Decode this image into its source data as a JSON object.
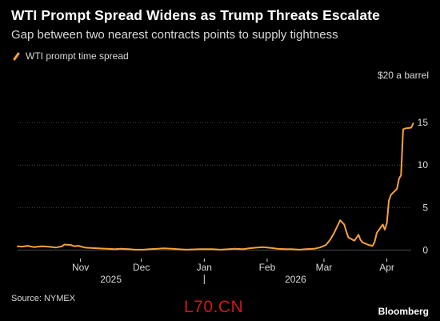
{
  "title": "WTI Prompt Spread Widens as Trump Threats Escalate",
  "subtitle": "Gap between two nearest contracts points to supply tightness",
  "unit_label": "$20 a barrel",
  "source": "Source: NYMEX",
  "watermark": "L70.CN",
  "brand": "Bloomberg",
  "colors": {
    "background": "#000000",
    "line": "#f7a13a",
    "grid": "#4a4a4a",
    "text": "#d9d9d9"
  },
  "chart_data": {
    "type": "line",
    "title": "WTI Prompt Spread Widens as Trump Threats Escalate",
    "subtitle": "Gap between two nearest contracts points to supply tightness",
    "ylabel": "$20 a barrel",
    "ylim": [
      -1,
      20
    ],
    "y_ticks": [
      0,
      5,
      10,
      15
    ],
    "grid": true,
    "legend_position": "top-left",
    "x_range": [
      "2025-10-01",
      "2026-04-13"
    ],
    "x_ticks": [
      {
        "date": "2025-11-01",
        "label": "Nov"
      },
      {
        "date": "2025-12-01",
        "label": "Dec"
      },
      {
        "date": "2026-01-01",
        "label": "Jan"
      },
      {
        "date": "2026-02-01",
        "label": "Feb"
      },
      {
        "date": "2026-03-01",
        "label": "Mar"
      },
      {
        "date": "2026-04-01",
        "label": "Apr"
      }
    ],
    "year_labels": [
      {
        "label": "2025",
        "date": "2025-11-16"
      },
      {
        "label": "2026",
        "date": "2026-02-15"
      }
    ],
    "year_separator": "2026-01-01",
    "series": [
      {
        "name": "WTI prompt time spread",
        "color": "#f7a13a",
        "points": [
          [
            "2025-10-01",
            0.45
          ],
          [
            "2025-10-03",
            0.4
          ],
          [
            "2025-10-06",
            0.5
          ],
          [
            "2025-10-09",
            0.35
          ],
          [
            "2025-10-13",
            0.45
          ],
          [
            "2025-10-16",
            0.4
          ],
          [
            "2025-10-20",
            0.3
          ],
          [
            "2025-10-23",
            0.45
          ],
          [
            "2025-10-24",
            0.65
          ],
          [
            "2025-10-27",
            0.6
          ],
          [
            "2025-10-29",
            0.45
          ],
          [
            "2025-10-31",
            0.5
          ],
          [
            "2025-11-03",
            0.3
          ],
          [
            "2025-11-06",
            0.25
          ],
          [
            "2025-11-10",
            0.2
          ],
          [
            "2025-11-14",
            0.15
          ],
          [
            "2025-11-18",
            0.1
          ],
          [
            "2025-11-21",
            0.15
          ],
          [
            "2025-11-25",
            0.1
          ],
          [
            "2025-11-28",
            0.05
          ],
          [
            "2025-12-02",
            0.05
          ],
          [
            "2025-12-05",
            0.1
          ],
          [
            "2025-12-09",
            0.15
          ],
          [
            "2025-12-12",
            0.2
          ],
          [
            "2025-12-16",
            0.15
          ],
          [
            "2025-12-19",
            0.1
          ],
          [
            "2025-12-23",
            0.05
          ],
          [
            "2025-12-30",
            0.1
          ],
          [
            "2026-01-05",
            0.1
          ],
          [
            "2026-01-09",
            0.05
          ],
          [
            "2026-01-13",
            0.1
          ],
          [
            "2026-01-16",
            0.15
          ],
          [
            "2026-01-20",
            0.1
          ],
          [
            "2026-01-23",
            0.2
          ],
          [
            "2026-01-27",
            0.3
          ],
          [
            "2026-01-30",
            0.35
          ],
          [
            "2026-02-03",
            0.25
          ],
          [
            "2026-02-06",
            0.15
          ],
          [
            "2026-02-10",
            0.1
          ],
          [
            "2026-02-13",
            0.1
          ],
          [
            "2026-02-17",
            0.05
          ],
          [
            "2026-02-20",
            0.1
          ],
          [
            "2026-02-24",
            0.15
          ],
          [
            "2026-02-27",
            0.3
          ],
          [
            "2026-03-02",
            0.6
          ],
          [
            "2026-03-04",
            1.2
          ],
          [
            "2026-03-06",
            2.0
          ],
          [
            "2026-03-09",
            3.5
          ],
          [
            "2026-03-11",
            3.0
          ],
          [
            "2026-03-12",
            2.2
          ],
          [
            "2026-03-13",
            1.5
          ],
          [
            "2026-03-16",
            1.1
          ],
          [
            "2026-03-18",
            1.8
          ],
          [
            "2026-03-19",
            1.2
          ],
          [
            "2026-03-20",
            0.9
          ],
          [
            "2026-03-23",
            0.6
          ],
          [
            "2026-03-25",
            0.5
          ],
          [
            "2026-03-26",
            1.0
          ],
          [
            "2026-03-27",
            2.0
          ],
          [
            "2026-03-30",
            3.0
          ],
          [
            "2026-03-31",
            2.4
          ],
          [
            "2026-04-01",
            3.2
          ],
          [
            "2026-04-02",
            5.8
          ],
          [
            "2026-04-03",
            6.5
          ],
          [
            "2026-04-06",
            7.2
          ],
          [
            "2026-04-07",
            8.4
          ],
          [
            "2026-04-08",
            8.8
          ],
          [
            "2026-04-09",
            14.2
          ],
          [
            "2026-04-10",
            14.3
          ],
          [
            "2026-04-13",
            14.4
          ],
          [
            "2026-04-14",
            14.9
          ]
        ]
      }
    ]
  }
}
